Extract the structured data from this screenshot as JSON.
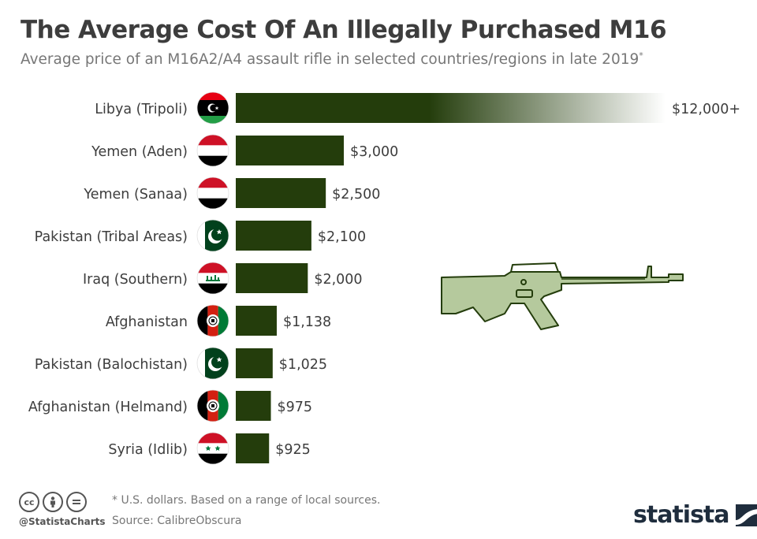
{
  "header": {
    "title": "The Average Cost Of An Illegally Purchased M16",
    "subtitle": "Average price of an M16A2/A4 assault rifle in selected countries/regions in late 2019",
    "subtitle_mark": "*"
  },
  "chart_data": {
    "type": "bar",
    "orientation": "horizontal",
    "title": "The Average Cost Of An Illegally Purchased M16",
    "xlabel": "",
    "ylabel": "",
    "unit": "U.S. dollars",
    "categories": [
      "Libya (Tripoli)",
      "Yemen (Aden)",
      "Yemen (Sanaa)",
      "Pakistan (Tribal Areas)",
      "Iraq (Southern)",
      "Afghanistan",
      "Pakistan (Balochistan)",
      "Afghanistan (Helmand)",
      "Syria (Idlib)"
    ],
    "values": [
      12000,
      3000,
      2500,
      2100,
      2000,
      1138,
      1025,
      975,
      925
    ],
    "value_labels": [
      "$12,000+",
      "$3,000",
      "$2,500",
      "$2,100",
      "$2,000",
      "$1,138",
      "$1,025",
      "$975",
      "$925"
    ],
    "flags": [
      "libya-flag-icon",
      "yemen-flag-icon",
      "yemen-flag-icon",
      "pakistan-flag-icon",
      "iraq-flag-icon",
      "afghanistan-flag-icon",
      "pakistan-flag-icon",
      "afghanistan-flag-icon",
      "syria-flag-icon"
    ],
    "bar_color": "#243d0c",
    "illustration": "m16-rifle-icon"
  },
  "footer": {
    "note": "* U.S. dollars. Based on a range of local sources.",
    "source": "Source: CalibreObscura",
    "handle": "@StatistaCharts",
    "brand": "statista",
    "license_icons": [
      "cc-icon",
      "attribution-icon",
      "no-derivatives-icon"
    ]
  },
  "colors": {
    "bar": "#243d0c",
    "rifle": "#b5c99d",
    "text": "#3d3d3d",
    "brand": "#1f2d3d"
  }
}
